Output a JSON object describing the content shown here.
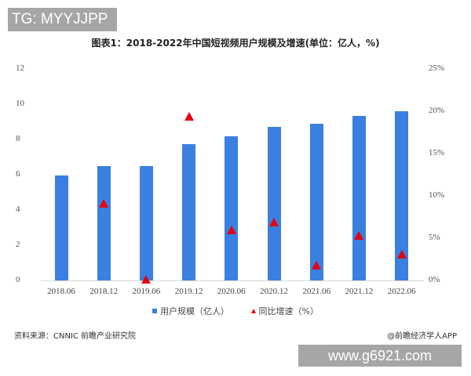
{
  "watermark_top": "TG: MYYJJPP",
  "watermark_bottom": "www.g6921.com",
  "chart_title": "图表1：2018-2022年中国短视频用户规模及增速(单位：亿人，%)",
  "legend": {
    "bar": "用户规模（亿人）",
    "marker": "同比增速（%）"
  },
  "source": "资料来源：CNNIC 前瞻产业研究院",
  "credit": "@前瞻经济学人APP",
  "colors": {
    "bar": "#3a80e0",
    "marker": "#e60012"
  },
  "left_ticks": [
    "0",
    "2",
    "4",
    "6",
    "8",
    "10",
    "12"
  ],
  "right_ticks": [
    "0%",
    "5%",
    "10%",
    "15%",
    "20%",
    "25%"
  ],
  "chart_data": {
    "type": "bar",
    "title": "图表1：2018-2022年中国短视频用户规模及增速(单位：亿人，%)",
    "categories": [
      "2018.06",
      "2018.12",
      "2019.06",
      "2019.12",
      "2020.06",
      "2020.12",
      "2021.06",
      "2021.12",
      "2022.06"
    ],
    "series": [
      {
        "name": "用户规模（亿人）",
        "type": "bar",
        "axis": "left",
        "values": [
          5.94,
          6.48,
          6.48,
          7.73,
          8.18,
          8.73,
          8.88,
          9.34,
          9.62
        ]
      },
      {
        "name": "同比增速（%）",
        "type": "scatter",
        "marker": "triangle",
        "axis": "right",
        "values": [
          null,
          9.0,
          0.0,
          19.3,
          5.8,
          6.8,
          1.7,
          5.2,
          3.0
        ]
      }
    ],
    "ylim_left": [
      0,
      12
    ],
    "ylim_right": [
      0,
      25
    ],
    "xlabel": "",
    "ylabel_left": "",
    "ylabel_right": "",
    "grid": false,
    "legend_position": "bottom"
  }
}
